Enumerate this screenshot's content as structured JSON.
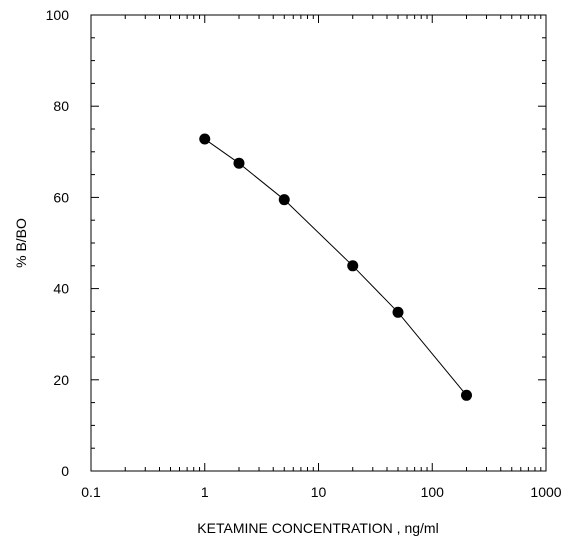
{
  "chart_data": {
    "type": "scatter",
    "title": "",
    "xlabel": "KETAMINE CONCENTRATION , ng/ml",
    "ylabel": "% B/BO",
    "x_scale": "log",
    "xlim": [
      0.1,
      1000
    ],
    "ylim": [
      0,
      100
    ],
    "x_ticks": [
      0.1,
      1,
      10,
      100,
      1000
    ],
    "x_tick_labels": [
      "0.1",
      "1",
      "10",
      "100",
      "1000"
    ],
    "y_ticks": [
      0,
      20,
      40,
      60,
      80,
      100
    ],
    "y_tick_labels": [
      "0",
      "20",
      "40",
      "60",
      "80",
      "100"
    ],
    "grid": false,
    "series": [
      {
        "x": [
          1,
          2,
          5,
          20,
          50,
          200
        ],
        "y": [
          72.8,
          67.5,
          59.5,
          45.0,
          34.8,
          16.6
        ],
        "marker": "filled-circle",
        "line": true,
        "color": "#000000"
      }
    ]
  }
}
